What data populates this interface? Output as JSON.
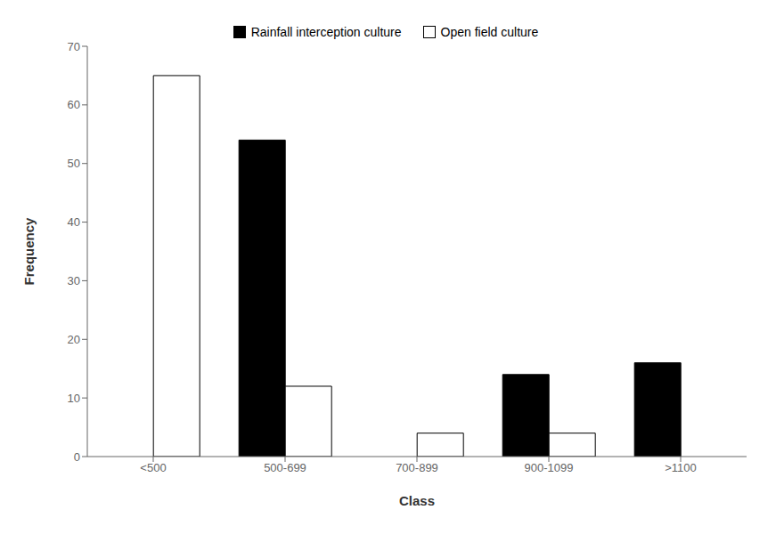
{
  "chart_data": {
    "type": "bar",
    "xlabel": "Class",
    "ylabel": "Frequency",
    "categories": [
      "<500",
      "500-699",
      "700-899",
      "900-1099",
      ">1100"
    ],
    "series": [
      {
        "name": "Rainfall interception culture",
        "color": "#000000",
        "values": [
          0,
          54,
          0,
          14,
          16
        ]
      },
      {
        "name": "Open field culture",
        "color": "#ffffff",
        "values": [
          65,
          12,
          4,
          4,
          0
        ]
      }
    ],
    "ylim": [
      0,
      70
    ],
    "yticks": [
      0,
      10,
      20,
      30,
      40,
      50,
      60,
      70
    ],
    "grid": false,
    "legend": "top"
  }
}
